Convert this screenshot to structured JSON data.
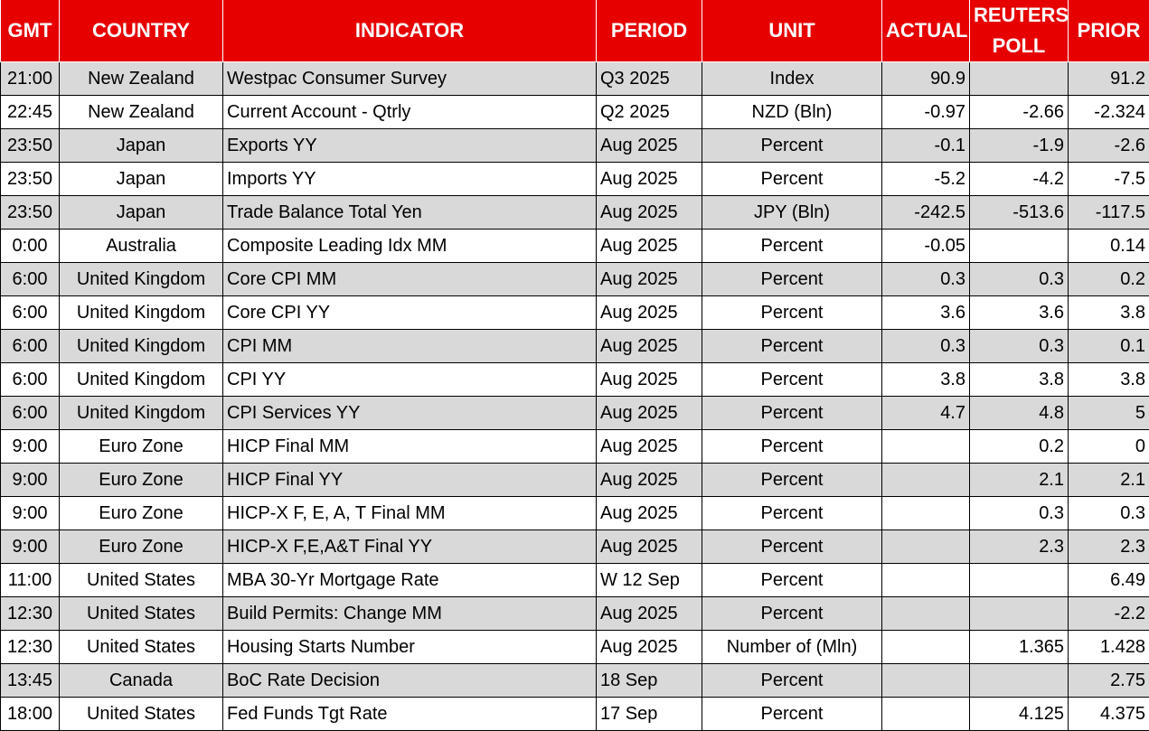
{
  "table": {
    "headers": [
      "GMT",
      "COUNTRY",
      "INDICATOR",
      "PERIOD",
      "UNIT",
      "ACTUAL",
      "REUTERS POLL",
      "PRIOR"
    ],
    "rows": [
      [
        "21:00",
        "New Zealand",
        "Westpac Consumer Survey",
        "Q3 2025",
        "Index",
        "90.9",
        null,
        "91.2"
      ],
      [
        "22:45",
        "New Zealand",
        "Current Account - Qtrly",
        "Q2 2025",
        "NZD (Bln)",
        "-0.97",
        "-2.66",
        "-2.324"
      ],
      [
        "23:50",
        "Japan",
        "Exports YY",
        "Aug 2025",
        "Percent",
        "-0.1",
        "-1.9",
        "-2.6"
      ],
      [
        "23:50",
        "Japan",
        "Imports YY",
        "Aug 2025",
        "Percent",
        "-5.2",
        "-4.2",
        "-7.5"
      ],
      [
        "23:50",
        "Japan",
        "Trade Balance Total Yen",
        "Aug 2025",
        "JPY (Bln)",
        "-242.5",
        "-513.6",
        "-117.5"
      ],
      [
        "0:00",
        "Australia",
        "Composite Leading Idx MM",
        "Aug 2025",
        "Percent",
        "-0.05",
        null,
        "0.14"
      ],
      [
        "6:00",
        "United Kingdom",
        "Core CPI MM",
        "Aug 2025",
        "Percent",
        "0.3",
        "0.3",
        "0.2"
      ],
      [
        "6:00",
        "United Kingdom",
        "Core CPI YY",
        "Aug 2025",
        "Percent",
        "3.6",
        "3.6",
        "3.8"
      ],
      [
        "6:00",
        "United Kingdom",
        "CPI MM",
        "Aug 2025",
        "Percent",
        "0.3",
        "0.3",
        "0.1"
      ],
      [
        "6:00",
        "United Kingdom",
        "CPI YY",
        "Aug 2025",
        "Percent",
        "3.8",
        "3.8",
        "3.8"
      ],
      [
        "6:00",
        "United Kingdom",
        "CPI Services YY",
        "Aug 2025",
        "Percent",
        "4.7",
        "4.8",
        "5"
      ],
      [
        "9:00",
        "Euro Zone",
        "HICP Final MM",
        "Aug 2025",
        "Percent",
        null,
        "0.2",
        "0"
      ],
      [
        "9:00",
        "Euro Zone",
        "HICP Final YY",
        "Aug 2025",
        "Percent",
        null,
        "2.1",
        "2.1"
      ],
      [
        "9:00",
        "Euro Zone",
        "HICP-X F, E, A, T Final MM",
        "Aug 2025",
        "Percent",
        null,
        "0.3",
        "0.3"
      ],
      [
        "9:00",
        "Euro Zone",
        "HICP-X F,E,A&T Final YY",
        "Aug 2025",
        "Percent",
        null,
        "2.3",
        "2.3"
      ],
      [
        "11:00",
        "United States",
        "MBA 30-Yr Mortgage Rate",
        "W 12 Sep",
        "Percent",
        null,
        null,
        "6.49"
      ],
      [
        "12:30",
        "United States",
        "Build Permits: Change MM",
        "Aug 2025",
        "Percent",
        null,
        null,
        "-2.2"
      ],
      [
        "12:30",
        "United States",
        "Housing Starts Number",
        "Aug 2025",
        "Number of (Mln)",
        null,
        "1.365",
        "1.428"
      ],
      [
        "13:45",
        "Canada",
        "BoC Rate Decision",
        "18 Sep",
        "Percent",
        null,
        null,
        "2.75"
      ],
      [
        "18:00",
        "United States",
        "Fed Funds Tgt Rate",
        "17 Sep",
        "Percent",
        null,
        "4.125",
        "4.375"
      ]
    ]
  }
}
